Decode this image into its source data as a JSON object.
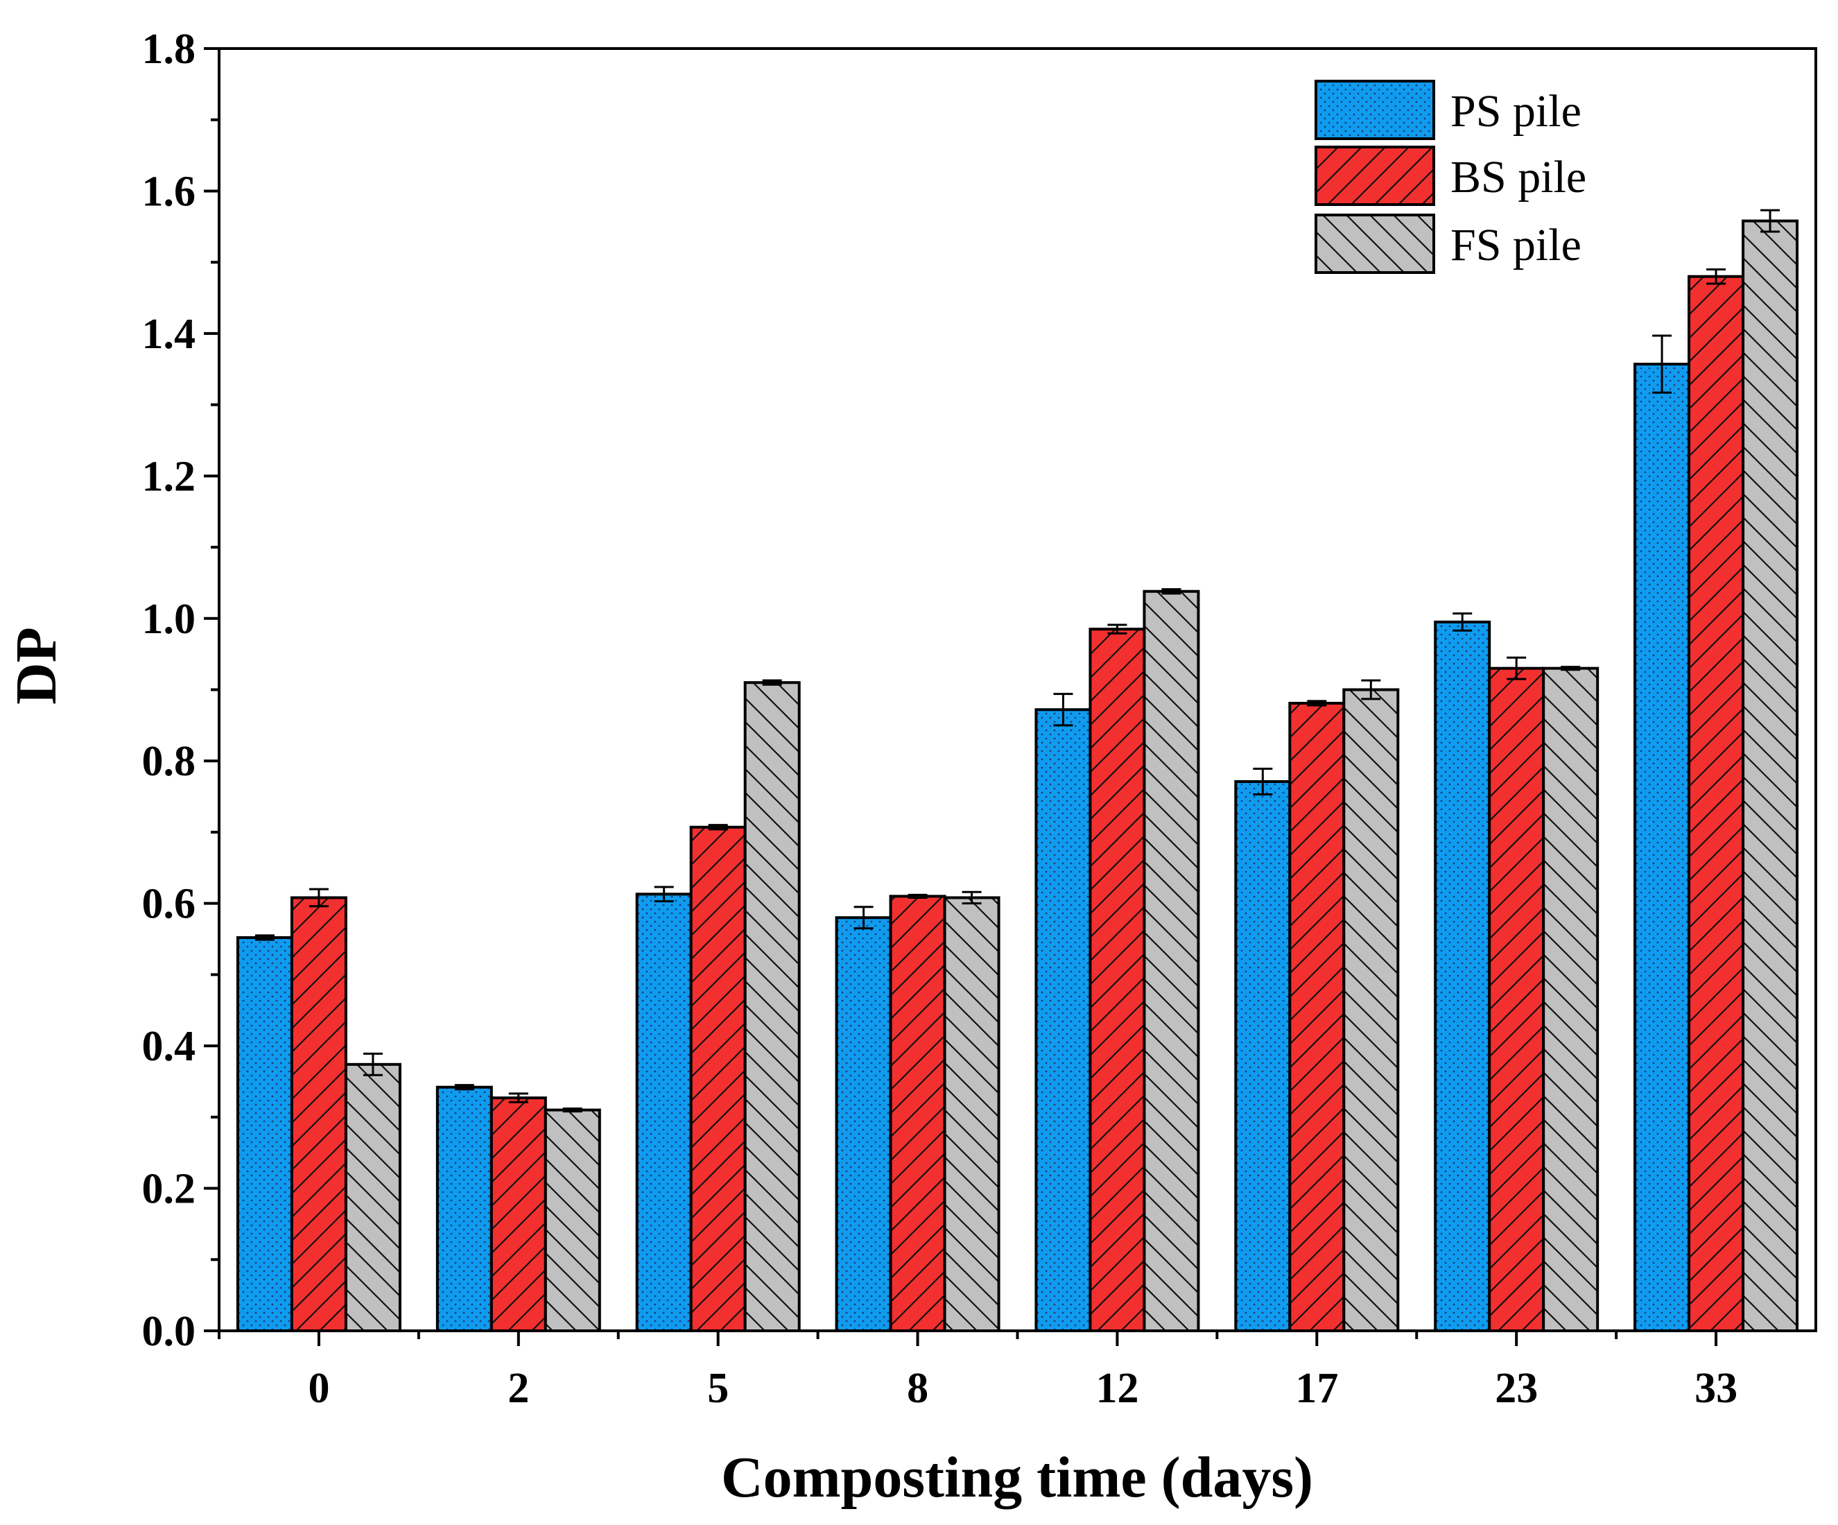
{
  "chart_data": {
    "type": "bar",
    "title": "",
    "xlabel": "Composting time (days)",
    "ylabel": "DP",
    "categories": [
      "0",
      "2",
      "5",
      "8",
      "12",
      "17",
      "23",
      "33"
    ],
    "ylim": [
      0.0,
      1.8
    ],
    "yticks": [
      "0.0",
      "0.2",
      "0.4",
      "0.6",
      "0.8",
      "1.0",
      "1.2",
      "1.4",
      "1.6",
      "1.8"
    ],
    "grid": false,
    "legend_position": "top-right",
    "series": [
      {
        "name": "PS pile",
        "color": "#0f9cf0",
        "pattern": "dots",
        "values": [
          0.552,
          0.342,
          0.613,
          0.58,
          0.872,
          0.771,
          0.995,
          1.357
        ],
        "errors": [
          0.003,
          0.003,
          0.01,
          0.015,
          0.022,
          0.018,
          0.012,
          0.04
        ]
      },
      {
        "name": "BS pile",
        "color": "#f23030",
        "pattern": "forward-hatch",
        "values": [
          0.608,
          0.327,
          0.707,
          0.61,
          0.985,
          0.881,
          0.93,
          1.48
        ],
        "errors": [
          0.012,
          0.006,
          0.003,
          0.002,
          0.006,
          0.003,
          0.015,
          0.01
        ]
      },
      {
        "name": "FS pile",
        "color": "#c0c0c0",
        "pattern": "back-hatch",
        "values": [
          0.374,
          0.31,
          0.91,
          0.608,
          1.038,
          0.9,
          0.93,
          1.558
        ],
        "errors": [
          0.015,
          0.002,
          0.003,
          0.008,
          0.003,
          0.013,
          0.002,
          0.015
        ]
      }
    ]
  }
}
